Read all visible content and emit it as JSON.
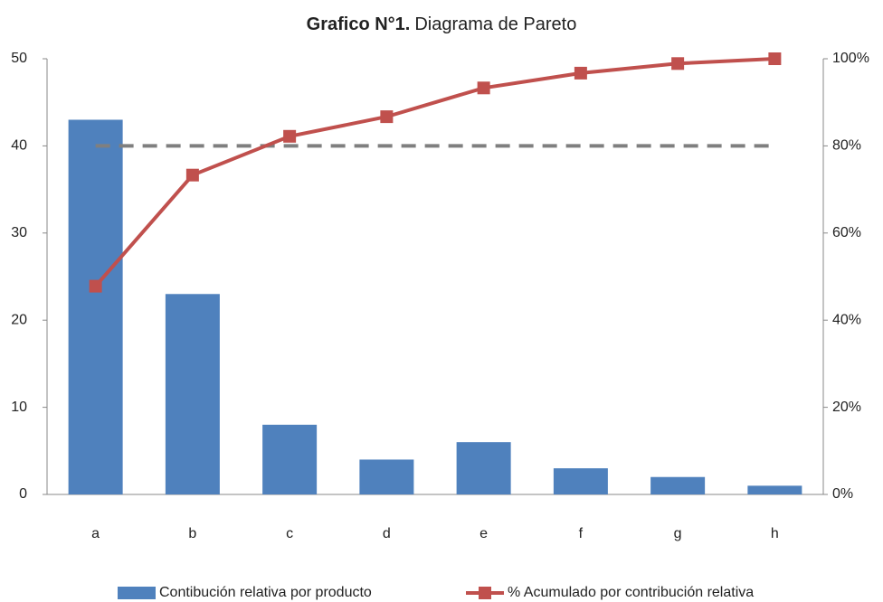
{
  "chart_data": {
    "type": "pareto",
    "title": [
      "Grafico N°1.",
      "Diagrama de Pareto"
    ],
    "categories": [
      "a",
      "b",
      "c",
      "d",
      "e",
      "f",
      "g",
      "h"
    ],
    "series": [
      {
        "name": "Contibución relativa por producto",
        "color": "#4f81bd",
        "type": "bar",
        "values": [
          43,
          23,
          8,
          4,
          6,
          3,
          2,
          1
        ]
      },
      {
        "name": "% Acumulado por contribución relativa",
        "color": "#c0504d",
        "type": "line",
        "axis": "y2",
        "values": [
          47.8,
          73.3,
          82.2,
          86.7,
          93.3,
          96.7,
          98.9,
          100
        ]
      }
    ],
    "ylim": [
      0,
      50
    ],
    "yticks": [
      0,
      10,
      20,
      30,
      40,
      50
    ],
    "y2lim": [
      0,
      100
    ],
    "y2ticks": [
      {
        "value": 0,
        "label": "0%"
      },
      {
        "value": 20,
        "label": "20%"
      },
      {
        "value": 40,
        "label": "40%"
      },
      {
        "value": 60,
        "label": "60%"
      },
      {
        "value": 80,
        "label": "80%"
      },
      {
        "value": 100,
        "label": "100%"
      }
    ],
    "threshold": 80,
    "threshold_color": "#7f7f7f",
    "grid": false,
    "legend": "bottom"
  }
}
